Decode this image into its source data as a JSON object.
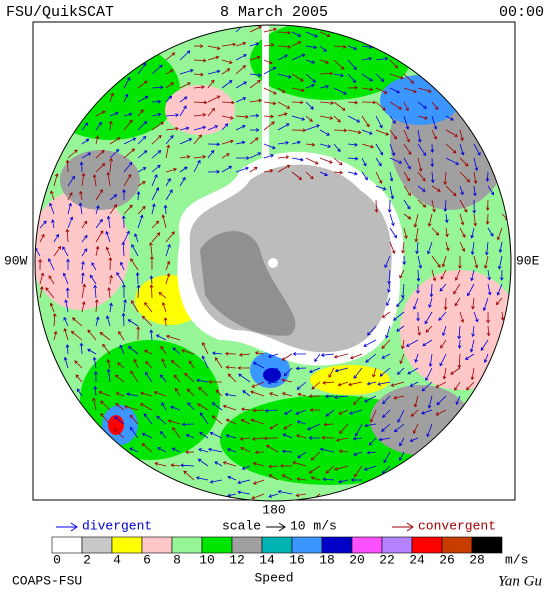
{
  "header": {
    "left": "FSU/QuikSCAT",
    "center": "8 March 2005",
    "right": "00:00"
  },
  "map_labels": {
    "west": "90W",
    "east": "90E",
    "south": "180"
  },
  "legend": {
    "divergent": "divergent",
    "scale": "scale",
    "scale_value": "10 m/s",
    "convergent": "convergent"
  },
  "colorbar": {
    "ticks": [
      "0",
      "2",
      "4",
      "6",
      "8",
      "10",
      "12",
      "14",
      "16",
      "18",
      "20",
      "22",
      "24",
      "26",
      "28"
    ],
    "unit": "m/s",
    "label": "Speed",
    "colors": [
      "#ffffff",
      "#c8c8c8",
      "#ffff00",
      "#ffc8c8",
      "#96f596",
      "#00e600",
      "#a0a0a0",
      "#00b4b4",
      "#3c96ff",
      "#0000c8",
      "#ff50ff",
      "#b482ff",
      "#ff0000",
      "#c83c00",
      "#000000"
    ]
  },
  "footer": {
    "left": "COAPS-FSU",
    "right": "Yan Gu"
  }
}
